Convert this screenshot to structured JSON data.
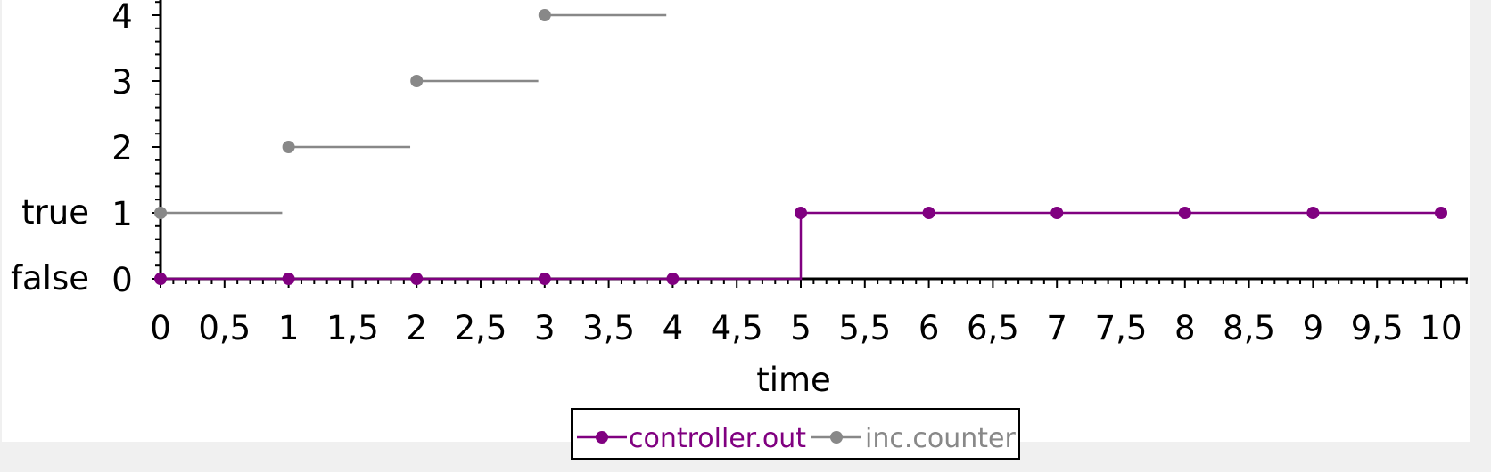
{
  "chart_data": {
    "type": "line",
    "title": "",
    "xlabel": "time",
    "ylabel": "",
    "xlim": [
      0,
      10
    ],
    "ylim": [
      0,
      4
    ],
    "x_ticks": [
      "0",
      "0,5",
      "1",
      "1,5",
      "2",
      "2,5",
      "3",
      "3,5",
      "4",
      "4,5",
      "5",
      "5,5",
      "6",
      "6,5",
      "7",
      "7,5",
      "8",
      "8,5",
      "9",
      "9,5",
      "10"
    ],
    "y_ticks": [
      "0",
      "1",
      "2",
      "3",
      "4"
    ],
    "y_bool_labels": [
      "false",
      "true"
    ],
    "legend_position": "bottom-center",
    "series": [
      {
        "name": "controller.out",
        "color": "#800080",
        "step": true,
        "x": [
          0,
          1,
          2,
          3,
          4,
          5,
          6,
          7,
          8,
          9,
          10
        ],
        "y": [
          0,
          0,
          0,
          0,
          0,
          1,
          1,
          1,
          1,
          1,
          1
        ]
      },
      {
        "name": "inc.counter",
        "color": "#888888",
        "step": false,
        "x": [
          0,
          1,
          2,
          3
        ],
        "y": [
          1,
          2,
          3,
          4
        ],
        "segment_end": [
          0.95,
          1.95,
          2.95,
          3.95
        ]
      }
    ]
  }
}
